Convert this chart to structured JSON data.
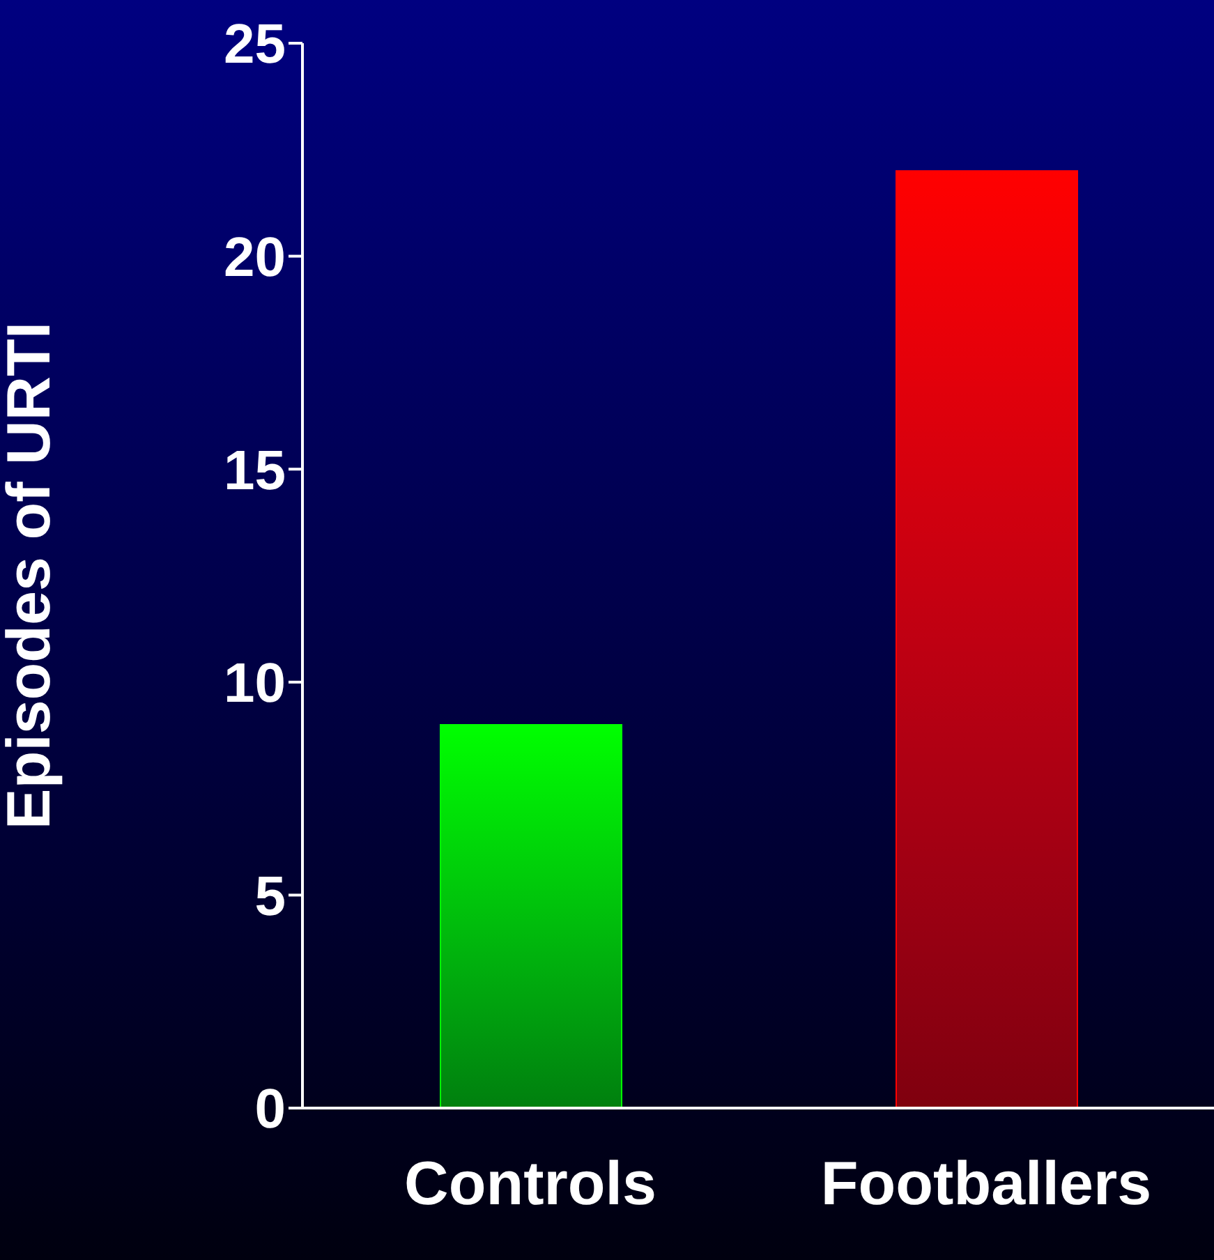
{
  "chart_data": {
    "type": "bar",
    "ylabel": "Episodes of URTI",
    "categories": [
      "Controls",
      "Footballers"
    ],
    "values": [
      9,
      22
    ],
    "colors": [
      "#00ff00",
      "#ff0000"
    ],
    "ylim": [
      0,
      25
    ],
    "yticks": [
      0,
      5,
      10,
      15,
      20,
      25
    ],
    "grid": false,
    "legend": false
  }
}
